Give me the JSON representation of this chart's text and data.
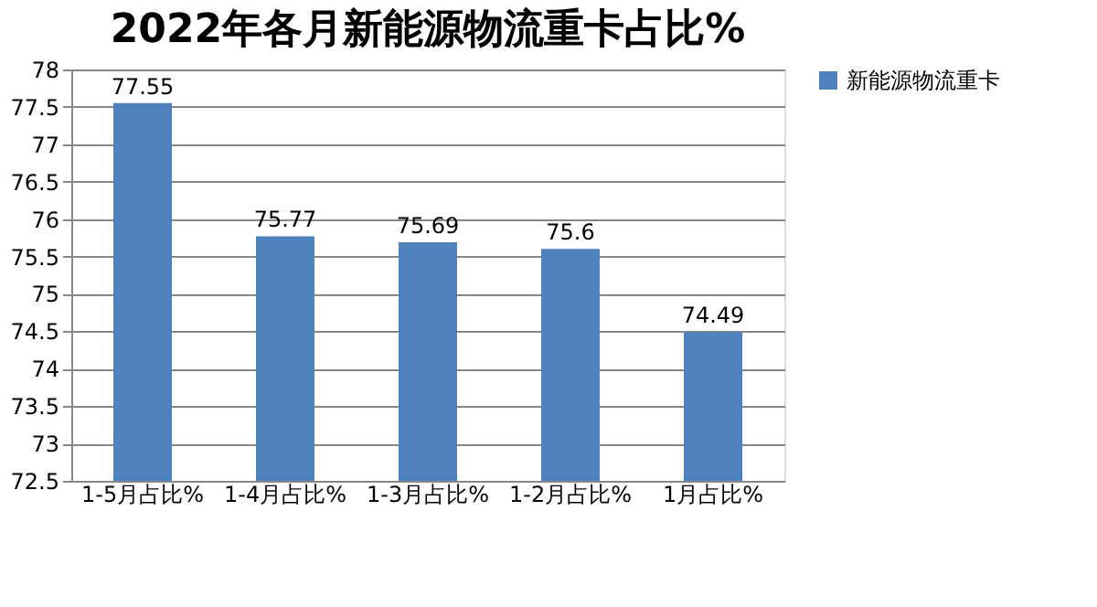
{
  "chart_data": {
    "type": "bar",
    "title": "2022年各月新能源物流重卡占比%",
    "categories": [
      "1-5月占比%",
      "1-4月占比%",
      "1-3月占比%",
      "1-2月占比%",
      "1月占比%"
    ],
    "series": [
      {
        "name": "新能源物流重卡",
        "color": "#4f81bd",
        "values": [
          77.55,
          75.77,
          75.69,
          75.6,
          74.49
        ]
      }
    ],
    "ylim": [
      72.5,
      78
    ],
    "yticks": [
      72.5,
      73,
      73.5,
      74,
      74.5,
      75,
      75.5,
      76,
      76.5,
      77,
      77.5,
      78
    ],
    "grid": "y",
    "legend": "right",
    "data_labels": true
  }
}
